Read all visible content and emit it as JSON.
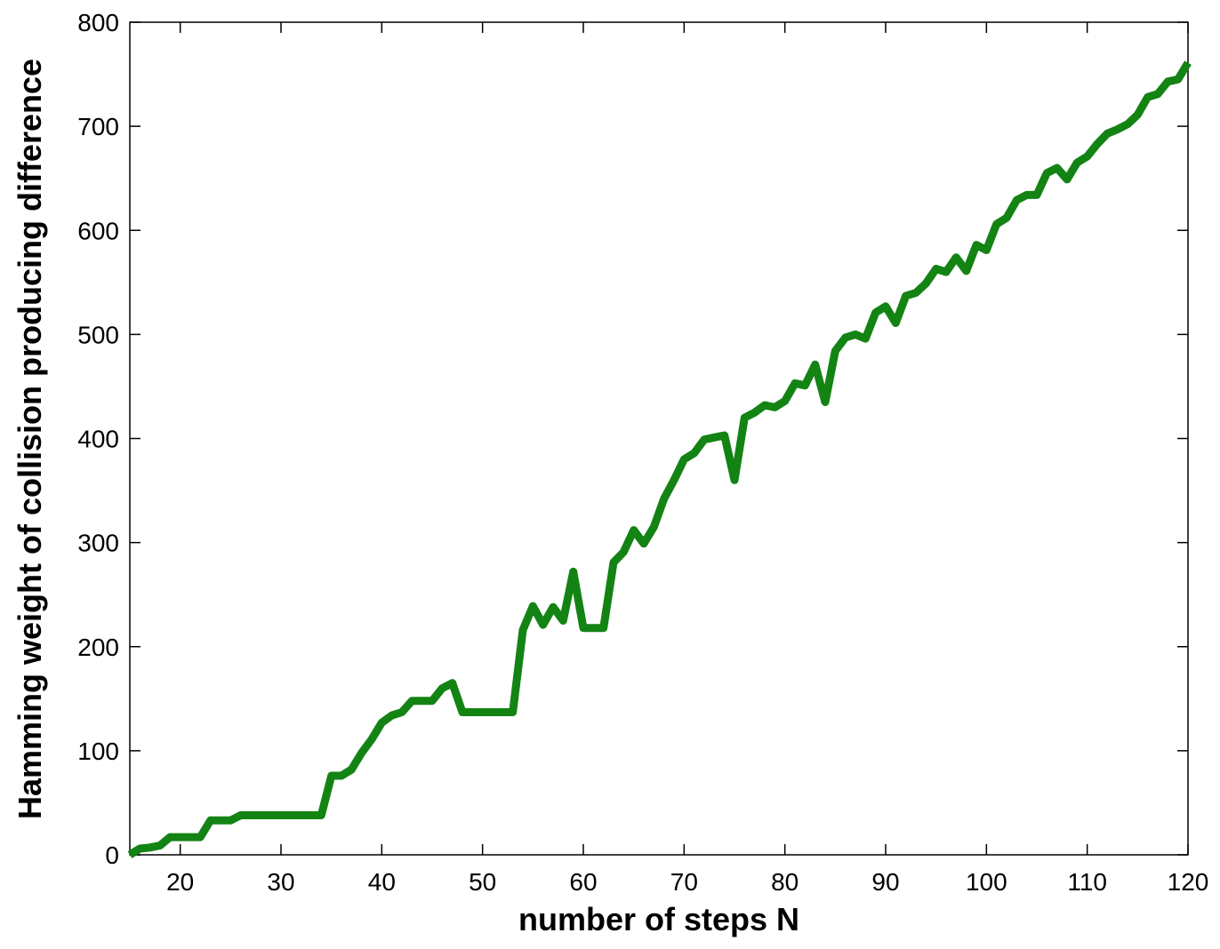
{
  "chart_data": {
    "type": "line",
    "x_label": "number of steps N",
    "y_label": "Hamming weight of collision producing difference",
    "x": [
      15,
      16,
      17,
      18,
      19,
      20,
      21,
      22,
      23,
      24,
      25,
      26,
      27,
      28,
      29,
      30,
      31,
      32,
      33,
      34,
      35,
      36,
      37,
      38,
      39,
      40,
      41,
      42,
      43,
      44,
      45,
      46,
      47,
      48,
      49,
      50,
      51,
      52,
      53,
      54,
      55,
      56,
      57,
      58,
      59,
      60,
      61,
      62,
      63,
      64,
      65,
      66,
      67,
      68,
      69,
      70,
      71,
      72,
      73,
      74,
      75,
      76,
      77,
      78,
      79,
      80,
      81,
      82,
      83,
      84,
      85,
      86,
      87,
      88,
      89,
      90,
      91,
      92,
      93,
      94,
      95,
      96,
      97,
      98,
      99,
      100,
      101,
      102,
      103,
      104,
      105,
      106,
      107,
      108,
      109,
      110,
      111,
      112,
      113,
      114,
      115,
      116,
      117,
      118,
      119,
      120
    ],
    "values": [
      0,
      6,
      7,
      9,
      17,
      17,
      17,
      17,
      33,
      33,
      33,
      38,
      38,
      38,
      38,
      38,
      38,
      38,
      38,
      38,
      76,
      76,
      82,
      98,
      111,
      127,
      134,
      137,
      148,
      148,
      148,
      160,
      165,
      137,
      137,
      137,
      137,
      137,
      137,
      216,
      239,
      221,
      238,
      225,
      272,
      218,
      218,
      218,
      281,
      291,
      312,
      299,
      315,
      342,
      360,
      380,
      386,
      399,
      401,
      403,
      360,
      420,
      425,
      432,
      430,
      436,
      453,
      451,
      471,
      435,
      484,
      497,
      500,
      496,
      521,
      527,
      511,
      537,
      540,
      549,
      563,
      560,
      574,
      561,
      586,
      581,
      606,
      612,
      629,
      634,
      634,
      655,
      660,
      649,
      665,
      671,
      683,
      693,
      697,
      702,
      711,
      728,
      731,
      743,
      745,
      761
    ],
    "color": "#138313",
    "xlim": [
      15,
      120
    ],
    "xticks": [
      20,
      30,
      40,
      50,
      60,
      70,
      80,
      90,
      100,
      110,
      120
    ],
    "ylim": [
      0,
      800
    ],
    "yticks": [
      0,
      100,
      200,
      300,
      400,
      500,
      600,
      700,
      800
    ],
    "grid": false
  }
}
